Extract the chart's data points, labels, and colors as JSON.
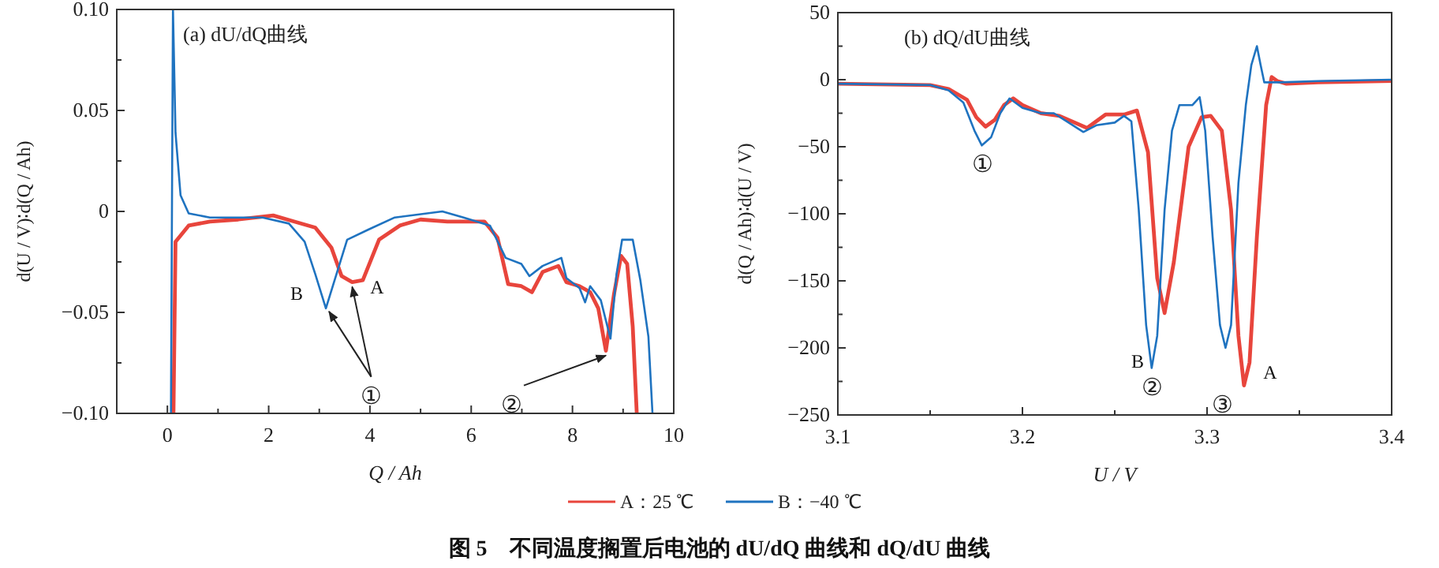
{
  "chart_data": [
    {
      "type": "line",
      "title": "(a) dU/dQ曲线",
      "xlabel": "Q / Ah",
      "ylabel": "d(U / V)∶d(Q / Ah)",
      "xlim": [
        -1,
        10
      ],
      "xticks": [
        0,
        2,
        4,
        6,
        8,
        10
      ],
      "ylim": [
        -0.1,
        0.1
      ],
      "yticks": [
        {
          "value": 0.1,
          "label": "0.10"
        },
        0.05,
        0,
        {
          "value": -0.05,
          "label": "−0.05"
        },
        {
          "value": -0.1,
          "label": "−0.10"
        }
      ],
      "grid": false,
      "series": [
        {
          "color": "#e8453c",
          "x": [
            0.12,
            0.16,
            0.42,
            0.84,
            1.4,
            2.09,
            2.5,
            2.92,
            3.24,
            3.44,
            3.65,
            3.86,
            4.18,
            4.59,
            5.0,
            5.53,
            6.26,
            6.52,
            6.73,
            6.99,
            7.2,
            7.41,
            7.72,
            7.88,
            8.14,
            8.35,
            8.51,
            8.66,
            8.82,
            8.96,
            9.08,
            9.19,
            9.27
          ],
          "values": [
            -0.1,
            -0.015,
            -0.007,
            -0.005,
            -0.004,
            -0.002,
            -0.005,
            -0.008,
            -0.018,
            -0.032,
            -0.035,
            -0.034,
            -0.014,
            -0.007,
            -0.004,
            -0.005,
            -0.005,
            -0.013,
            -0.036,
            -0.037,
            -0.04,
            -0.03,
            -0.027,
            -0.035,
            -0.037,
            -0.04,
            -0.048,
            -0.069,
            -0.041,
            -0.022,
            -0.026,
            -0.057,
            -0.1
          ]
        },
        {
          "color": "#1f73c0",
          "x": [
            0.07,
            0.11,
            0.16,
            0.26,
            0.42,
            0.84,
            1.88,
            2.4,
            2.71,
            2.92,
            3.13,
            3.34,
            3.55,
            3.97,
            4.49,
            5.43,
            5.85,
            6.37,
            6.68,
            6.99,
            7.15,
            7.41,
            7.78,
            7.88,
            8.14,
            8.25,
            8.35,
            8.56,
            8.75,
            8.87,
            8.98,
            9.19,
            9.34,
            9.5,
            9.58
          ],
          "values": [
            -0.1,
            0.1,
            0.039,
            0.008,
            -0.001,
            -0.003,
            -0.003,
            -0.006,
            -0.015,
            -0.031,
            -0.048,
            -0.031,
            -0.014,
            -0.009,
            -0.003,
            0,
            -0.003,
            -0.007,
            -0.023,
            -0.026,
            -0.032,
            -0.027,
            -0.023,
            -0.033,
            -0.038,
            -0.045,
            -0.037,
            -0.044,
            -0.063,
            -0.031,
            -0.014,
            -0.014,
            -0.034,
            -0.062,
            -0.1
          ]
        }
      ],
      "annotations": [
        "B",
        "A",
        {
          "text": "①",
          "x": 3.65,
          "y": -0.035
        },
        {
          "text": "②",
          "x": 8.66,
          "y": -0.069
        }
      ]
    },
    {
      "type": "line",
      "title": "(b) dQ/dU曲线",
      "xlabel": "U / V",
      "ylabel": "d(Q / Ah)∶d(U / V)",
      "xlim": [
        3.1,
        3.4
      ],
      "xticks": [
        3.1,
        3.2,
        3.3,
        3.4
      ],
      "ylim": [
        -250,
        50
      ],
      "yticks": [
        50,
        0,
        {
          "value": -50,
          "label": "−50"
        },
        {
          "value": -100,
          "label": "−100"
        },
        {
          "value": -150,
          "label": "−150"
        },
        {
          "value": -200,
          "label": "−200"
        },
        {
          "value": -250,
          "label": "−250"
        }
      ],
      "grid": false,
      "legend": "bottom",
      "series": [
        {
          "name": "A：25 ℃",
          "color": "#e8453c",
          "x": [
            3.1,
            3.15,
            3.16,
            3.17,
            3.175,
            3.18,
            3.185,
            3.19,
            3.195,
            3.2,
            3.21,
            3.22,
            3.235,
            3.245,
            3.255,
            3.262,
            3.268,
            3.273,
            3.277,
            3.282,
            3.29,
            3.297,
            3.302,
            3.308,
            3.313,
            3.317,
            3.32,
            3.323,
            3.327,
            3.332,
            3.335,
            3.338,
            3.343,
            3.36,
            3.4
          ],
          "values": [
            -3,
            -4,
            -7,
            -15,
            -28,
            -35,
            -30,
            -19,
            -14,
            -19,
            -25,
            -27,
            -36,
            -26,
            -26,
            -23,
            -54,
            -148,
            -174,
            -136,
            -50,
            -28,
            -27,
            -38,
            -97,
            -191,
            -228,
            -211,
            -117,
            -19,
            2,
            -1,
            -3,
            -2,
            -1
          ]
        },
        {
          "name": "B：−40 ℃",
          "color": "#1f73c0",
          "x": [
            3.1,
            3.15,
            3.16,
            3.168,
            3.174,
            3.178,
            3.183,
            3.188,
            3.193,
            3.2,
            3.21,
            3.217,
            3.225,
            3.233,
            3.24,
            3.25,
            3.255,
            3.259,
            3.263,
            3.267,
            3.27,
            3.273,
            3.277,
            3.281,
            3.285,
            3.292,
            3.296,
            3.299,
            3.303,
            3.307,
            3.31,
            3.313,
            3.317,
            3.321,
            3.324,
            3.327,
            3.329,
            3.331,
            3.34,
            3.36,
            3.4
          ],
          "values": [
            -3,
            -4,
            -8,
            -17,
            -38,
            -49,
            -43,
            -25,
            -14,
            -21,
            -25,
            -25,
            -32,
            -39,
            -34,
            -32,
            -27,
            -31,
            -97,
            -183,
            -215,
            -191,
            -97,
            -38,
            -19,
            -19,
            -13,
            -38,
            -117,
            -183,
            -200,
            -183,
            -77,
            -19,
            11,
            25,
            11,
            -2,
            -2,
            -1,
            0
          ]
        }
      ],
      "annotations": [
        {
          "text": "①",
          "x": 3.178,
          "y": -49
        },
        "B",
        {
          "text": "②",
          "x": 3.27,
          "y": -215
        },
        "A",
        {
          "text": "③",
          "x": 3.32,
          "y": -228
        },
        "图 5　不同温度搁置后电池的 dU/dQ 曲线和 dQ/dU 曲线"
      ]
    }
  ]
}
